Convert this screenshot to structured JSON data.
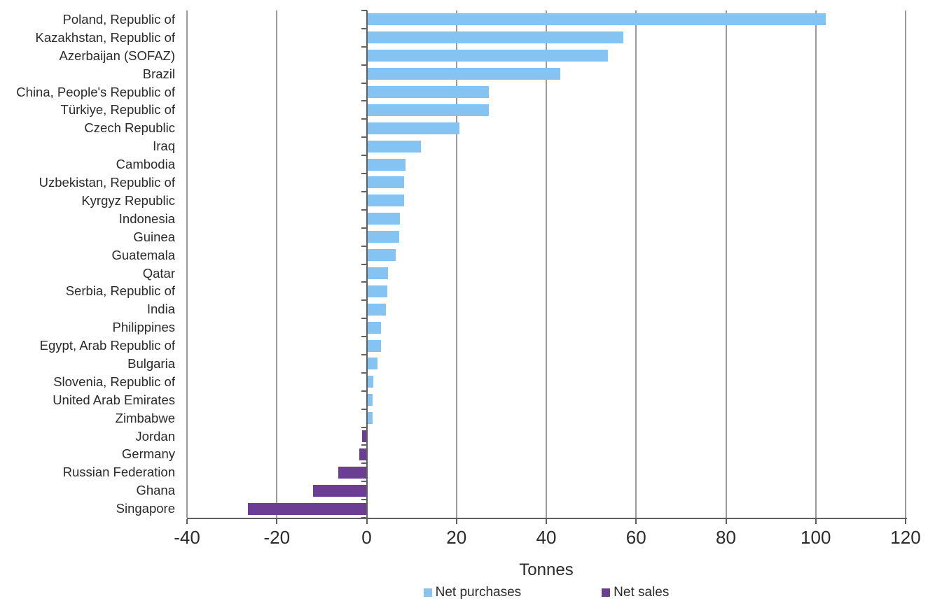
{
  "chart_data": {
    "type": "bar",
    "orientation": "horizontal",
    "title": "",
    "xlabel": "Tonnes",
    "ylabel": "",
    "xlim": [
      -40,
      120
    ],
    "x_ticks": [
      -40,
      -20,
      0,
      20,
      40,
      60,
      80,
      100,
      120
    ],
    "grid": true,
    "legend_position": "bottom",
    "series": [
      {
        "name": "Net purchases",
        "color": "#85C3F2"
      },
      {
        "name": "Net sales",
        "color": "#6C3E93"
      }
    ],
    "categories": [
      "Poland, Republic of",
      "Kazakhstan, Republic of",
      "Azerbaijan (SOFAZ)",
      "Brazil",
      "China, People's Republic of",
      "Türkiye, Republic of",
      "Czech Republic",
      "Iraq",
      "Cambodia",
      "Uzbekistan, Republic of",
      "Kyrgyz Republic",
      "Indonesia",
      "Guinea",
      "Guatemala",
      "Qatar",
      "Serbia, Republic of",
      "India",
      "Philippines",
      "Egypt, Arab Republic of",
      "Bulgaria",
      "Slovenia, Republic of",
      "United Arab Emirates",
      "Zimbabwe",
      "Jordan",
      "Germany",
      "Russian Federation",
      "Ghana",
      "Singapore"
    ],
    "values": [
      102,
      57,
      53.5,
      43,
      27,
      27,
      20.5,
      12,
      8.5,
      8.2,
      8.2,
      7.2,
      7.1,
      6.3,
      4.6,
      4.5,
      4.2,
      3.1,
      3,
      2.3,
      1.4,
      1.2,
      1.2,
      -1,
      -1.6,
      -6.3,
      -12,
      -26.5
    ],
    "colors": {
      "purchases": "#85C3F2",
      "sales": "#6C3E93",
      "gridline": "#9a9a9a",
      "axis": "#606060",
      "text": "#2b2b2b",
      "background": "#ffffff"
    }
  },
  "legend": {
    "purchases_label": "Net purchases",
    "sales_label": "Net sales"
  }
}
